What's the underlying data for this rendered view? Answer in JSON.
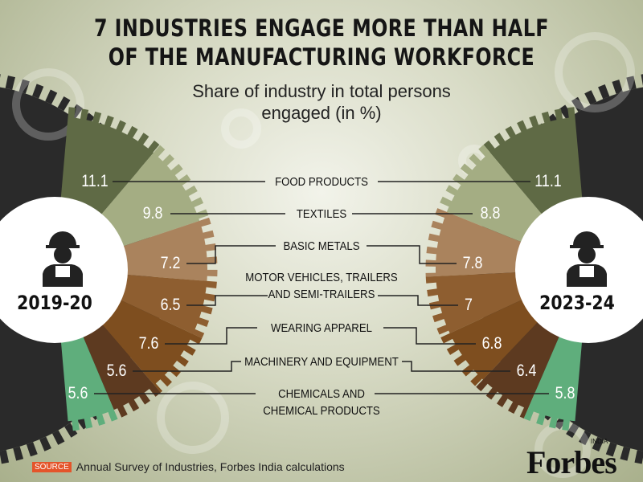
{
  "title_line1": "7 INDUSTRIES ENGAGE MORE THAN HALF",
  "title_line2": "OF THE MANUFACTURING WORKFORCE",
  "subtitle_line1": "Share of industry in total persons",
  "subtitle_line2": "engaged (in %)",
  "chart_data": {
    "type": "pie",
    "title": "7 INDUSTRIES ENGAGE MORE THAN HALF OF THE MANUFACTURING WORKFORCE",
    "subtitle": "Share of industry in total persons engaged (in %)",
    "categories": [
      "FOOD PRODUCTS",
      "TEXTILES",
      "BASIC METALS",
      "MOTOR VEHICLES, TRAILERS AND SEMI-TRAILERS",
      "WEARING APPAREL",
      "MACHINERY AND EQUIPMENT",
      "CHEMICALS AND CHEMICAL PRODUCTS"
    ],
    "label_lines": [
      [
        "FOOD PRODUCTS"
      ],
      [
        "TEXTILES"
      ],
      [
        "BASIC METALS"
      ],
      [
        "MOTOR VEHICLES, TRAILERS",
        "AND SEMI-TRAILERS"
      ],
      [
        "WEARING APPAREL"
      ],
      [
        "MACHINERY AND EQUIPMENT"
      ],
      [
        "CHEMICALS AND",
        "CHEMICAL PRODUCTS"
      ]
    ],
    "colors": [
      "#5f6a45",
      "#a4ad83",
      "#aa835d",
      "#8e5e30",
      "#7e4e1f",
      "#5d3a20",
      "#5fae7c"
    ],
    "series": [
      {
        "name": "2019-20",
        "values": [
          11.1,
          9.8,
          7.2,
          6.5,
          7.6,
          5.6,
          5.6
        ]
      },
      {
        "name": "2023-24",
        "values": [
          11.1,
          8.8,
          7.8,
          7,
          6.8,
          6.4,
          5.8
        ]
      }
    ]
  },
  "source_label": "SOURCE",
  "source_text": "Annual Survey of Industries, Forbes India calculations",
  "logo": "Forbes",
  "logo_sub": "INDIA",
  "icon": "worker-hardhat-icon"
}
